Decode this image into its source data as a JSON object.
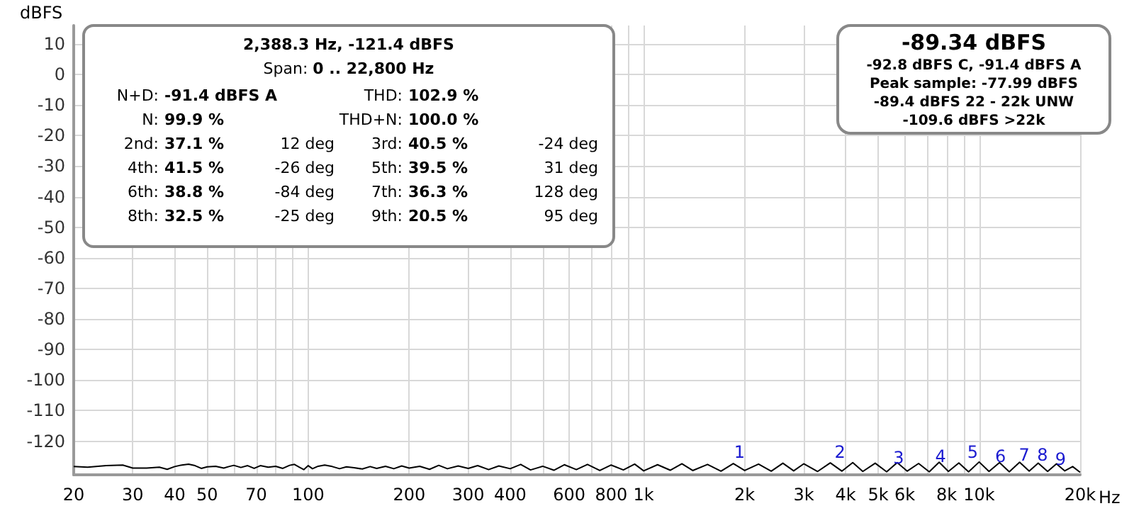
{
  "chart_data": {
    "type": "line",
    "ylabel": "dBFS",
    "log": "x",
    "grid": true,
    "marker": "none",
    "line_style": "solid",
    "xlim": [
      20,
      20000
    ],
    "xticks": [
      20,
      30,
      40,
      50,
      {
        "value": 60,
        "label": null
      },
      70,
      {
        "value": 80,
        "label": null
      },
      {
        "value": 90,
        "label": null
      },
      100,
      200,
      300,
      400,
      {
        "value": 500,
        "label": null
      },
      600,
      {
        "value": 700,
        "label": null
      },
      800,
      {
        "value": 900,
        "label": null
      },
      {
        "value": 1000,
        "label": "1k"
      },
      {
        "value": 2000,
        "label": "2k"
      },
      {
        "value": 3000,
        "label": "3k"
      },
      {
        "value": 4000,
        "label": "4k"
      },
      {
        "value": 5000,
        "label": "5k"
      },
      {
        "value": 6000,
        "label": "6k"
      },
      {
        "value": 7000,
        "label": null
      },
      {
        "value": 8000,
        "label": "8k"
      },
      {
        "value": 9000,
        "label": null
      },
      {
        "value": 10000,
        "label": "10k"
      },
      {
        "value": 20000,
        "label": "20k"
      }
    ],
    "xlabel": "Hz",
    "ylim": [
      -131,
      16
    ],
    "yticks": [
      -120,
      -110,
      -100,
      -90,
      -80,
      -70,
      -60,
      -50,
      -40,
      -30,
      -20,
      -10,
      0,
      10
    ],
    "series": [
      {
        "color": "#000000",
        "x": [
          20,
          22,
          25,
          28,
          30,
          33,
          36,
          38,
          40,
          42,
          44,
          46,
          48,
          50,
          53,
          56,
          58,
          60,
          63,
          66,
          69,
          72,
          76,
          80,
          84,
          88,
          91,
          94,
          97,
          100,
          103,
          107,
          112,
          118,
          124,
          130,
          137,
          145,
          153,
          160,
          170,
          180,
          190,
          200,
          215,
          230,
          245,
          260,
          280,
          300,
          320,
          345,
          370,
          400,
          430,
          460,
          500,
          540,
          580,
          630,
          680,
          740,
          800,
          870,
          940,
          1000,
          1100,
          1200,
          1300,
          1400,
          1550,
          1700,
          1850,
          2000,
          2200,
          2400,
          2600,
          2800,
          3000,
          3300,
          3600,
          3900,
          4200,
          4500,
          4900,
          5300,
          5700,
          6100,
          6600,
          7100,
          7600,
          8100,
          8700,
          9300,
          10000,
          10700,
          11500,
          12300,
          13200,
          14100,
          15000,
          16000,
          17000,
          18000,
          19000,
          20000
        ],
        "values": [
          -128.3,
          -128.5,
          -128,
          -127.8,
          -128.8,
          -128.8,
          -128.5,
          -129.2,
          -128.3,
          -127.8,
          -127.5,
          -128,
          -128.9,
          -128.4,
          -128.2,
          -128.8,
          -128.3,
          -127.9,
          -128.6,
          -128,
          -128.9,
          -128,
          -128.5,
          -128.2,
          -128.9,
          -127.9,
          -127.6,
          -128.5,
          -129.3,
          -128,
          -129,
          -128.2,
          -127.8,
          -128.3,
          -129,
          -128.4,
          -128.7,
          -129.1,
          -128.3,
          -128.9,
          -128.2,
          -129,
          -128.1,
          -128.8,
          -128.2,
          -129.2,
          -127.9,
          -129,
          -128.1,
          -128.9,
          -128,
          -129.3,
          -128.1,
          -129,
          -127.6,
          -129.4,
          -128.2,
          -129.5,
          -127.7,
          -129.3,
          -127.6,
          -129.6,
          -127.8,
          -129.4,
          -127.5,
          -129.7,
          -127.7,
          -129.5,
          -127.4,
          -129.6,
          -127.6,
          -129.8,
          -127.3,
          -129.6,
          -127.5,
          -129.8,
          -127.2,
          -129.7,
          -127.4,
          -129.9,
          -127.1,
          -129.8,
          -127,
          -129.9,
          -127.2,
          -130,
          -127,
          -129.8,
          -127.3,
          -130,
          -126.9,
          -129.9,
          -127.1,
          -130,
          -126.8,
          -129.9,
          -127,
          -130,
          -126.9,
          -129.8,
          -127.2,
          -129.9,
          -127.4,
          -129.7,
          -128.3,
          -130.2
        ]
      }
    ],
    "annotations": [
      "1",
      "2",
      "3",
      "4",
      "5",
      "6",
      "7",
      "8",
      "9",
      "2,388.3 Hz, -121.4 dBFS",
      "Span: 0 .. 22,800 Hz",
      "N+D: -91.4 dBFS A",
      "THD: 102.9 %",
      "N: 99.9 %",
      "THD+N: 100.0 %",
      "2nd: 37.1 %",
      "12 deg",
      "3rd: 40.5 %",
      "-24 deg",
      "4th: 41.5 %",
      "-26 deg",
      "5th: 39.5 %",
      "31 deg",
      "6th: 38.8 %",
      "-84 deg",
      "7th: 36.3 %",
      "128 deg",
      "8th: 32.5 %",
      "-25 deg",
      "9th: 20.5 %",
      "95 deg",
      "-89.34 dBFS",
      "-92.8 dBFS C, -91.4 dBFS A",
      "Peak sample: -77.99 dBFS",
      "-89.4 dBFS 22 - 22k UNW",
      "-109.6 dBFS >22k"
    ]
  }
}
